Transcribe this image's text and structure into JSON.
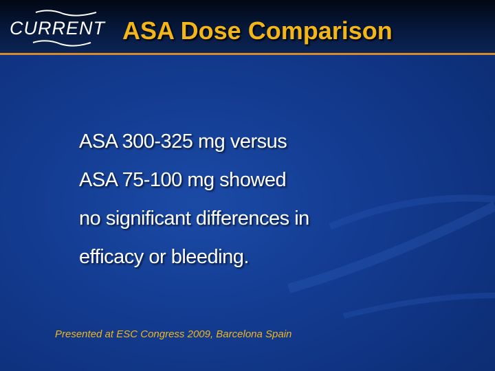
{
  "logo": {
    "text": "CURRENT"
  },
  "title": "ASA Dose Comparison",
  "body_lines": [
    "ASA 300-325 mg versus",
    "ASA 75-100 mg showed",
    "no significant differences in",
    "efficacy or bleeding."
  ],
  "footer": "Presented at ESC Congress 2009, Barcelona Spain",
  "colors": {
    "title": "#f2b61a",
    "rule": "#d98a2a",
    "background": "#123a8e"
  }
}
